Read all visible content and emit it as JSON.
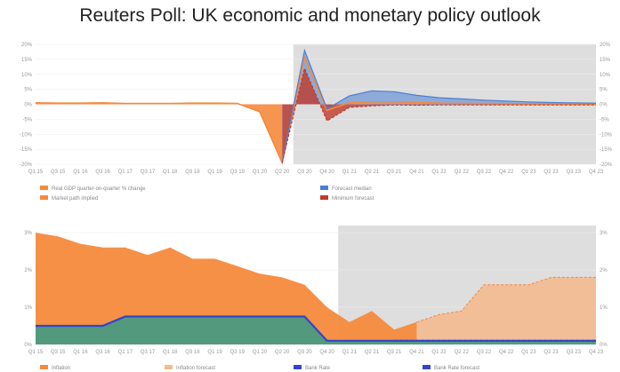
{
  "title": "Reuters Poll: UK economic and monetary policy outlook",
  "colors": {
    "orange": "#f58a3c",
    "orange_light": "#f6b98c",
    "blue": "#4a7fd4",
    "red": "#c0392b",
    "green": "#4a9a82",
    "navy": "#3344cc",
    "forecast_shade": "#dedede"
  },
  "chart_data": [
    {
      "type": "area",
      "ylim": [
        -20,
        20
      ],
      "y_ticks": [
        "20%",
        "15%",
        "10%",
        "5%",
        "0%",
        "-5%",
        "-10%",
        "-15%",
        "-20%"
      ],
      "categories": [
        "Q1 15",
        "Q3 15",
        "Q1 16",
        "Q3 16",
        "Q1 17",
        "Q3 17",
        "Q1 18",
        "Q3 18",
        "Q1 19",
        "Q3 19",
        "Q1 20",
        "Q2 20",
        "Q3 20",
        "Q4 20",
        "Q1 21",
        "Q2 21",
        "Q3 21",
        "Q4 21",
        "Q1 22",
        "Q2 22",
        "Q3 22",
        "Q4 22",
        "Q1 23",
        "Q2 23",
        "Q3 23",
        "Q4 23"
      ],
      "forecast_start_index": 12,
      "series": [
        {
          "name": "Real GDP quarter-on-quarter % change",
          "values": [
            0.4,
            0.5,
            0.3,
            0.5,
            0.4,
            0.4,
            0.2,
            0.5,
            0.5,
            0.2,
            -2.5,
            -19.5,
            null,
            null,
            null,
            null,
            null,
            null,
            null,
            null,
            null,
            null,
            null,
            null,
            null,
            null
          ]
        },
        {
          "name": "Market path implied",
          "values": [
            0.5,
            0.4,
            0.4,
            0.5,
            0.3,
            0.3,
            0.3,
            0.4,
            0.4,
            0.3,
            -2.5,
            -19.5,
            15.5,
            -2.0,
            0.5,
            0.8,
            0.8,
            0.6,
            0.4,
            0.3,
            0.3,
            0.2,
            0.2,
            0.2,
            0.2,
            0.2
          ]
        },
        {
          "name": "Forecast median",
          "values": [
            null,
            null,
            null,
            null,
            null,
            null,
            null,
            null,
            null,
            null,
            null,
            -19.5,
            18.0,
            -1.5,
            2.8,
            4.5,
            4.2,
            3.0,
            2.2,
            1.8,
            1.4,
            1.1,
            0.8,
            0.6,
            0.5,
            0.4
          ]
        },
        {
          "name": "Minimum forecast",
          "values": [
            null,
            null,
            null,
            null,
            null,
            null,
            null,
            null,
            null,
            null,
            null,
            -19.5,
            12.0,
            -5.5,
            -1.0,
            -0.5,
            -0.2,
            -0.3,
            -0.2,
            -0.2,
            -0.2,
            -0.2,
            -0.2,
            -0.2,
            -0.2,
            -0.2
          ]
        }
      ]
    },
    {
      "type": "area",
      "ylim": [
        0,
        3
      ],
      "y_ticks": [
        "3%",
        "2%",
        "1%",
        "0%"
      ],
      "categories": [
        "Q1 15",
        "Q3 15",
        "Q1 16",
        "Q3 16",
        "Q1 17",
        "Q3 17",
        "Q1 18",
        "Q3 18",
        "Q1 19",
        "Q3 19",
        "Q1 20",
        "Q2 20",
        "Q3 20",
        "Q4 20",
        "Q1 21",
        "Q2 21",
        "Q3 21",
        "Q4 21",
        "Q1 22",
        "Q2 22",
        "Q3 22",
        "Q4 22",
        "Q1 23",
        "Q2 23",
        "Q3 23",
        "Q4 23"
      ],
      "forecast_start_index": 14,
      "series": [
        {
          "name": "Inflation",
          "values": [
            3.0,
            2.9,
            2.7,
            2.6,
            2.6,
            2.4,
            2.6,
            2.3,
            2.3,
            2.1,
            1.9,
            1.8,
            1.6,
            1.0,
            0.6,
            0.9,
            0.4,
            0.6,
            null,
            null,
            null,
            null,
            null,
            null,
            null,
            null
          ]
        },
        {
          "name": "Inflation forecast",
          "values": [
            null,
            null,
            null,
            null,
            null,
            null,
            null,
            null,
            null,
            null,
            null,
            null,
            null,
            null,
            null,
            null,
            null,
            0.6,
            0.8,
            0.9,
            1.6,
            1.6,
            1.6,
            1.8,
            1.8,
            1.8
          ]
        },
        {
          "name": "Bank Rate",
          "values": [
            0.5,
            0.5,
            0.5,
            0.5,
            0.75,
            0.75,
            0.75,
            0.75,
            0.75,
            0.75,
            0.75,
            0.75,
            0.75,
            0.1,
            0.1,
            0.1,
            0.1,
            0.1,
            0.1,
            0.1,
            0.1,
            0.1,
            0.1,
            0.1,
            0.1,
            0.1
          ]
        },
        {
          "name": "Bank Rate forecast",
          "values": [
            null,
            null,
            null,
            null,
            null,
            null,
            null,
            null,
            null,
            null,
            null,
            null,
            null,
            null,
            null,
            null,
            0.1,
            0.1,
            0.1,
            0.1,
            0.1,
            0.1,
            0.1,
            0.1,
            0.1,
            0.1
          ]
        }
      ]
    }
  ]
}
